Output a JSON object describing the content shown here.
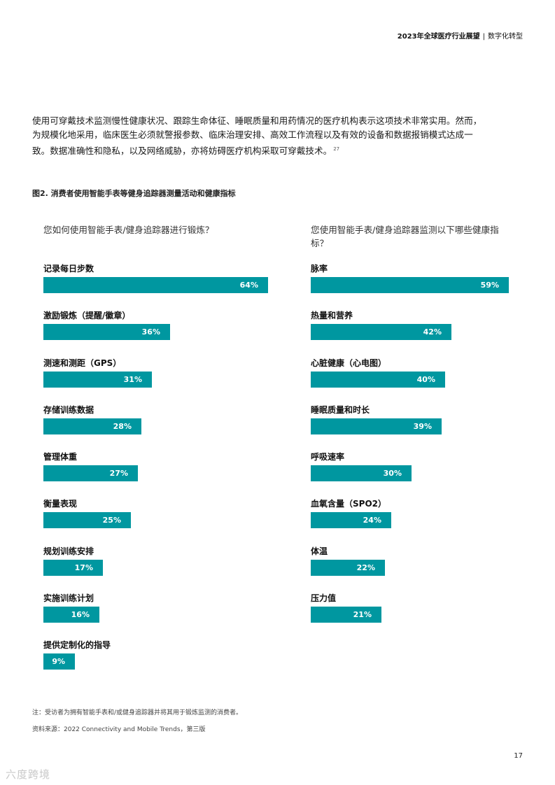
{
  "header": {
    "title": "2023年全球医疗行业展望",
    "separator": "|",
    "section": "数字化转型"
  },
  "intro": {
    "text": "使用可穿戴技术监测慢性健康状况、跟踪生命体征、睡眠质量和用药情况的医疗机构表示这项技术非常实用。然而，为规模化地采用，临床医生必须就警报参数、临床治理安排、高效工作流程以及有效的设备和数据报销模式达成一致。数据准确性和隐私，以及网络威胁，亦将妨碍医疗机构采取可穿戴技术。",
    "footnote_ref": "27"
  },
  "figure": {
    "title": "图2. 消费者使用智能手表等健身追踪器测量活动和健康指标"
  },
  "chart_data": [
    {
      "type": "bar",
      "orientation": "horizontal",
      "title": "您如何使用智能手表/健身追踪器进行锻炼？",
      "unit": "%",
      "color": "#0097a0",
      "categories": [
        "记录每日步数",
        "激励锻炼（提醒/徽章）",
        "测速和测距（GPS）",
        "存储训练数据",
        "管理体重",
        "衡量表现",
        "规划训练安排",
        "实施训练计划",
        "提供定制化的指导"
      ],
      "values": [
        64,
        36,
        31,
        28,
        27,
        25,
        17,
        16,
        9
      ],
      "value_labels": [
        "64%",
        "36%",
        "31%",
        "28%",
        "27%",
        "25%",
        "17%",
        "16%",
        "9%"
      ]
    },
    {
      "type": "bar",
      "orientation": "horizontal",
      "title": "您使用智能手表/健身追踪器监测以下哪些健康指标？",
      "unit": "%",
      "color": "#0097a0",
      "categories": [
        "脉率",
        "热量和营养",
        "心脏健康（心电图）",
        "睡眠质量和时长",
        "呼吸速率",
        "血氧含量（SPO2）",
        "体温",
        "压力值"
      ],
      "values": [
        59,
        42,
        40,
        39,
        30,
        24,
        22,
        21
      ],
      "value_labels": [
        "59%",
        "42%",
        "40%",
        "39%",
        "30%",
        "24%",
        "22%",
        "21%"
      ]
    }
  ],
  "footer": {
    "note": "注：受访者为拥有智能手表和/或健身追踪器并将其用于锻炼监测的消费者。",
    "source": "资料来源：2022 Connectivity and Mobile Trends，第三版",
    "page_number": "17"
  },
  "watermark": {
    "text": "六度跨境"
  }
}
